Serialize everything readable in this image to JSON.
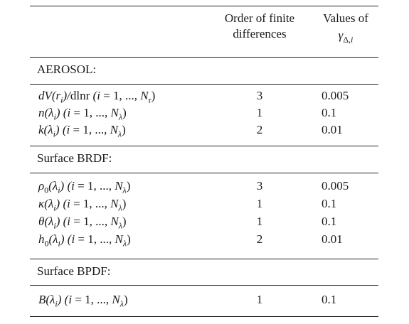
{
  "header": {
    "col2_line1": "Order of finite",
    "col2_line2": "differences",
    "col3_line1": "Values of",
    "col3_line2": "γΔ,i"
  },
  "sections": [
    {
      "title": "AEROSOL:",
      "rows": [
        {
          "param": "dV(ri)/dlnr (i = 1, ..., Nr)",
          "order": "3",
          "gamma": "0.005"
        },
        {
          "param": "n(λi) (i = 1, ..., Nλ)",
          "order": "1",
          "gamma": "0.1"
        },
        {
          "param": "k(λi) (i = 1, ..., Nλ)",
          "order": "2",
          "gamma": "0.01"
        }
      ]
    },
    {
      "title": "Surface BRDF:",
      "rows": [
        {
          "param": "ρ0(λi) (i = 1, ..., Nλ)",
          "order": "3",
          "gamma": "0.005"
        },
        {
          "param": "κ(λi) (i = 1, ..., Nλ)",
          "order": "1",
          "gamma": "0.1"
        },
        {
          "param": "θ(λi) (i = 1, ..., Nλ)",
          "order": "1",
          "gamma": "0.1"
        },
        {
          "param": "h0(λi) (i = 1, ..., Nλ)",
          "order": "2",
          "gamma": "0.01"
        }
      ]
    },
    {
      "title": "Surface BPDF:",
      "rows": [
        {
          "param": "B(λi) (i = 1, ..., Nλ)",
          "order": "1",
          "gamma": "0.1"
        }
      ]
    }
  ]
}
